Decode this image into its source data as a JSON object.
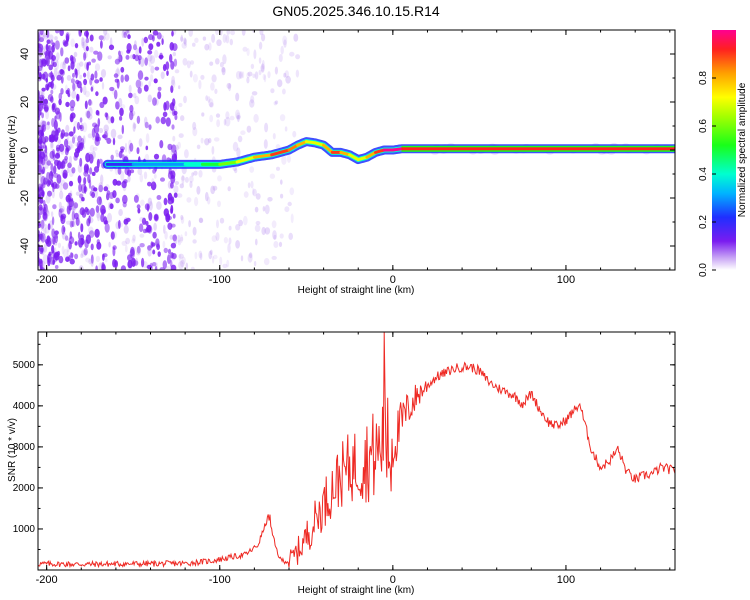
{
  "title": "GN05.2025.346.10.15.R14",
  "colors": {
    "spectrogram_noise": "#7a1cf0",
    "snr_line": "#ee2a24",
    "axis": "#000000"
  },
  "chart_data": [
    {
      "type": "heatmap",
      "name": "spectrogram",
      "xlabel": "Height of straight line (km)",
      "ylabel": "Frequency (Hz)",
      "xlim": [
        -205,
        163
      ],
      "ylim": [
        -50,
        50
      ],
      "xticks": [
        -200,
        -100,
        0,
        100
      ],
      "yticks": [
        40,
        20,
        0,
        -20,
        -40
      ],
      "ytick_labels": [
        "40",
        "20",
        "0",
        "-20",
        "-40"
      ],
      "colorbar": {
        "label": "Normalized spectral amplitude",
        "range": [
          0,
          1
        ],
        "ticks": [
          0.0,
          0.2,
          0.4,
          0.6,
          0.8
        ],
        "tick_labels": [
          "0.0",
          "0.2",
          "0.4",
          "0.6",
          "0.8"
        ],
        "colormap": "rainbow (purple to red)"
      },
      "ridge": {
        "description": "dominant frequency ridge",
        "x": [
          -165,
          -150,
          -120,
          -110,
          -100,
          -90,
          -80,
          -70,
          -60,
          -55,
          -50,
          -45,
          -40,
          -35,
          -30,
          -25,
          -20,
          -15,
          -10,
          -5,
          0,
          5,
          163
        ],
        "y": [
          -6,
          -6,
          -6,
          -6,
          -6,
          -5,
          -3,
          -2,
          0,
          2,
          3.5,
          3,
          2,
          -1,
          -1,
          -2,
          -4,
          -3,
          -1,
          0,
          0,
          0.5,
          0.5
        ],
        "amplitude": [
          0.2,
          0.2,
          0.3,
          0.4,
          0.5,
          0.6,
          0.7,
          0.8,
          0.9,
          0.85,
          0.8,
          0.7,
          0.7,
          0.8,
          0.9,
          0.8,
          0.7,
          0.7,
          0.8,
          0.9,
          1.0,
          1.0,
          1.0
        ]
      },
      "noise_region_x": [
        -205,
        -85
      ]
    },
    {
      "type": "line",
      "name": "snr",
      "xlabel": "Height of straight line (km)",
      "ylabel": "SNR (10 * v/v)",
      "xlim": [
        -205,
        163
      ],
      "ylim": [
        0,
        5800
      ],
      "xticks": [
        -200,
        -100,
        0,
        100
      ],
      "yticks": [
        1000,
        2000,
        3000,
        4000,
        5000
      ],
      "series": [
        {
          "name": "SNR",
          "x": [
            -205,
            -180,
            -150,
            -120,
            -105,
            -95,
            -85,
            -78,
            -72,
            -68,
            -65,
            -60,
            -55,
            -50,
            -45,
            -40,
            -35,
            -30,
            -25,
            -20,
            -15,
            -10,
            -7,
            -5,
            -3,
            0,
            5,
            10,
            15,
            20,
            25,
            30,
            35,
            40,
            45,
            50,
            55,
            60,
            65,
            70,
            75,
            80,
            85,
            90,
            95,
            100,
            105,
            108,
            110,
            115,
            120,
            125,
            130,
            135,
            140,
            145,
            150,
            155,
            160,
            163
          ],
          "y": [
            150,
            140,
            150,
            160,
            220,
            300,
            380,
            600,
            1300,
            600,
            250,
            200,
            450,
            800,
            1200,
            1600,
            2000,
            2300,
            2500,
            2600,
            2700,
            2800,
            3000,
            3200,
            2700,
            3000,
            3600,
            4000,
            4300,
            4500,
            4700,
            4800,
            4900,
            4950,
            4950,
            4850,
            4600,
            4450,
            4350,
            4250,
            4050,
            4300,
            3900,
            3600,
            3500,
            3650,
            3900,
            4050,
            3700,
            2900,
            2500,
            2650,
            2950,
            2400,
            2200,
            2300,
            2350,
            2500,
            2450,
            2400
          ]
        }
      ],
      "spikes": {
        "description": "isolated peaks",
        "x": [
          -71,
          -5,
          -3
        ],
        "y": [
          1350,
          5800,
          4200
        ]
      }
    }
  ]
}
